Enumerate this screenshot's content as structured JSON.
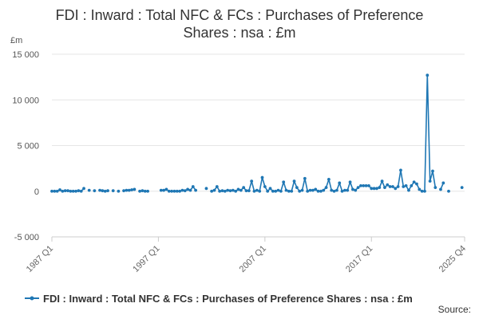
{
  "chart_data": {
    "type": "line",
    "title_lines": [
      "FDI : Inward : Total NFC & FCs : Purchases of Preference",
      "Shares : nsa : £m"
    ],
    "ylabel": "£m",
    "ylim": [
      -5000,
      15000
    ],
    "yticks": [
      -5000,
      0,
      5000,
      10000,
      15000
    ],
    "ytick_labels": [
      "-5 000",
      "0",
      "5 000",
      "10 000",
      "15 000"
    ],
    "x_tick_labels": [
      {
        "index": 0,
        "label": "1987 Q1"
      },
      {
        "index": 40,
        "label": "1997 Q1"
      },
      {
        "index": 80,
        "label": "2007 Q1"
      },
      {
        "index": 120,
        "label": "2017 Q1"
      },
      {
        "index": 155,
        "label": "2025 Q4"
      }
    ],
    "series": [
      {
        "name": "FDI : Inward : Total NFC & FCs : Purchases of Preference Shares : nsa : £m",
        "color": "#1f77b4",
        "values": [
          0,
          0,
          0,
          150,
          0,
          50,
          50,
          0,
          0,
          0,
          50,
          0,
          300,
          null,
          100,
          null,
          50,
          null,
          100,
          50,
          0,
          50,
          null,
          50,
          null,
          0,
          null,
          50,
          100,
          100,
          150,
          200,
          null,
          0,
          50,
          0,
          0,
          null,
          null,
          null,
          null,
          100,
          100,
          200,
          0,
          0,
          0,
          0,
          0,
          100,
          50,
          200,
          100,
          500,
          100,
          null,
          null,
          null,
          300,
          null,
          0,
          100,
          500,
          0,
          50,
          0,
          100,
          50,
          100,
          0,
          200,
          100,
          400,
          50,
          50,
          1100,
          0,
          100,
          0,
          1500,
          500,
          0,
          300,
          0,
          0,
          100,
          0,
          1000,
          100,
          0,
          0,
          1100,
          400,
          0,
          100,
          1400,
          0,
          100,
          100,
          200,
          0,
          0,
          100,
          400,
          1300,
          100,
          0,
          100,
          900,
          0,
          100,
          100,
          1000,
          200,
          100,
          400,
          600,
          600,
          600,
          600,
          300,
          300,
          300,
          400,
          1100,
          400,
          700,
          500,
          500,
          300,
          500,
          2300,
          500,
          600,
          100,
          600,
          1000,
          800,
          200,
          0,
          0,
          12700,
          1100,
          2200,
          400,
          null,
          200,
          900,
          null,
          0,
          null,
          null,
          null,
          null,
          400,
          null
        ]
      }
    ],
    "legend": {
      "position": "bottom",
      "label": "FDI : Inward : Total NFC & FCs : Purchases of Preference Shares : nsa : £m"
    },
    "grid": true,
    "source_label": "Source:"
  }
}
